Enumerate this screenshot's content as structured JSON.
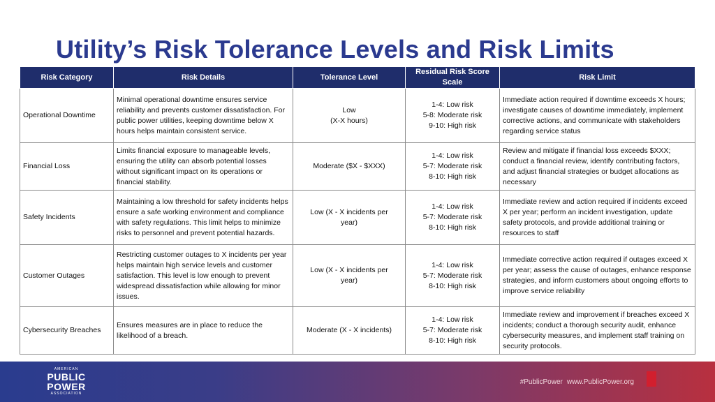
{
  "title": "Utility’s Risk Tolerance Levels and Risk Limits",
  "table": {
    "headers": [
      "Risk Category",
      "Risk Details",
      "Tolerance Level",
      "Residual Risk Score Scale",
      "Risk Limit"
    ],
    "rows": [
      {
        "category": "Operational Downtime",
        "details": "Minimal operational downtime ensures service reliability and prevents customer dissatisfaction. For public power utilities, keeping downtime below X hours helps maintain consistent service.",
        "tolerance": [
          "Low",
          "(X-X hours)"
        ],
        "scale": [
          "1-4: Low risk",
          "5-8: Moderate risk",
          "9-10: High risk"
        ],
        "limit": "Immediate action required if downtime exceeds X hours; investigate causes of downtime immediately, implement corrective actions, and communicate with stakeholders regarding service status"
      },
      {
        "category": "Financial Loss",
        "details": "Limits financial exposure to manageable levels, ensuring the utility can absorb potential losses without significant impact on its operations or financial stability.",
        "tolerance": [
          "Moderate ($X - $XXX)"
        ],
        "scale": [
          "1-4: Low risk",
          "5-7: Moderate risk",
          "8-10: High risk"
        ],
        "limit": "Review and mitigate if financial loss exceeds $XXX; conduct a financial review, identify contributing factors, and adjust financial strategies or budget allocations as necessary"
      },
      {
        "category": "Safety Incidents",
        "details": "Maintaining a low threshold for safety incidents helps ensure a safe working environment and compliance with safety regulations. This limit helps to minimize risks to personnel and prevent potential hazards.",
        "tolerance": [
          "Low (X - X incidents per",
          "year)"
        ],
        "scale": [
          "1-4: Low risk",
          "5-7: Moderate risk",
          "8-10: High risk"
        ],
        "limit": "Immediate review and action required if incidents exceed X per year; perform an incident investigation, update safety protocols, and provide additional training or resources to staff"
      },
      {
        "category": "Customer Outages",
        "details": "Restricting customer outages to X incidents per year helps maintain high service levels and customer satisfaction. This level is low enough to prevent widespread dissatisfaction while allowing for minor issues.",
        "tolerance": [
          "Low (X - X incidents per",
          "year)"
        ],
        "scale": [
          "1-4: Low risk",
          "5-7: Moderate risk",
          "8-10: High risk"
        ],
        "limit": "Immediate corrective action required if outages exceed X per year; assess the cause of outages, enhance response strategies, and inform customers about ongoing efforts to improve service reliability"
      },
      {
        "category": "Cybersecurity Breaches",
        "details": "Ensures measures are in place to reduce the likelihood of a breach.",
        "tolerance": [
          "Moderate (X - X incidents)"
        ],
        "scale": [
          "1-4: Low risk",
          "5-7: Moderate risk",
          "8-10: High risk"
        ],
        "limit": "Immediate review and improvement if breaches exceed X incidents; conduct a thorough security audit, enhance cybersecurity measures, and implement staff training on security protocols."
      }
    ]
  },
  "footer": {
    "logo": {
      "line1": "AMERICAN",
      "line2": "PUBLIC",
      "line3": "POWER",
      "line4": "ASSOCIATION"
    },
    "hashtag": "#PublicPower",
    "website": "www.PublicPower.org"
  }
}
